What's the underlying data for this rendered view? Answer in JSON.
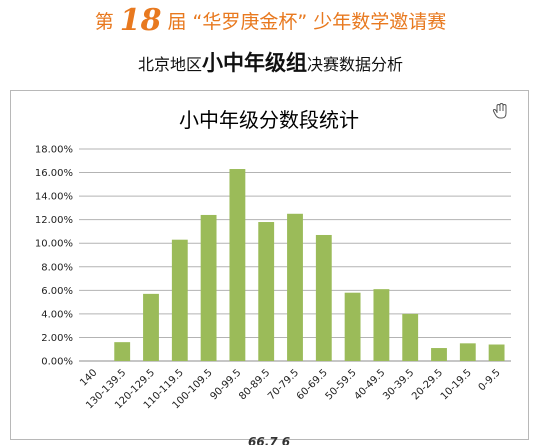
{
  "header": {
    "prefix": "第",
    "edition": "18",
    "suffix": "届 “华罗庚金杯” 少年数学邀请赛"
  },
  "subheader": {
    "pre": "北京地区",
    "emph": "小中年级组",
    "post": "决赛数据分析"
  },
  "footer": {
    "text": "66.7 6"
  },
  "colors": {
    "accent": "#e8791f",
    "bar": "#9bbb59",
    "grid": "#b3b3b3"
  },
  "icons": {
    "cursor": "hand-cursor-icon"
  },
  "chart_data": {
    "type": "bar",
    "title": "小中年级分数段统计",
    "xlabel": "",
    "ylabel": "",
    "categories": [
      "140",
      "130-139.5",
      "120-129.5",
      "110-119.5",
      "100-109.5",
      "90-99.5",
      "80-89.5",
      "70-79.5",
      "60-69.5",
      "50-59.5",
      "40-49.5",
      "30-39.5",
      "20-29.5",
      "10-19.5",
      "0-9.5"
    ],
    "values": [
      0,
      1.6,
      5.7,
      10.3,
      12.4,
      16.3,
      11.8,
      12.5,
      10.7,
      5.8,
      6.1,
      4.0,
      1.1,
      1.5,
      1.4
    ],
    "value_format": "percent",
    "yticks": [
      "0.00%",
      "2.00%",
      "4.00%",
      "6.00%",
      "8.00%",
      "10.00%",
      "12.00%",
      "14.00%",
      "16.00%",
      "18.00%"
    ],
    "ylim": [
      0,
      18
    ],
    "grid": true,
    "legend": "none"
  }
}
